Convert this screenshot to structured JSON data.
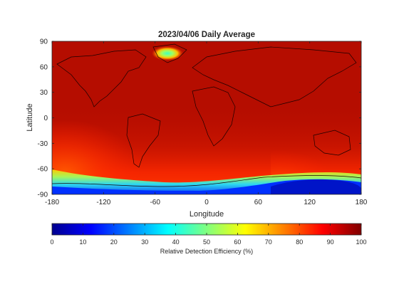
{
  "figure": {
    "title": "2023/04/06 Daily Average",
    "xlabel": "Longitude",
    "ylabel": "Latitude",
    "x_ticks": [
      "-180",
      "-120",
      "-60",
      "0",
      "60",
      "120",
      "180"
    ],
    "y_ticks": [
      "90",
      "60",
      "30",
      "0",
      "-30",
      "-60",
      "-90"
    ],
    "colorbar": {
      "label": "Relative Detection Efficiency (%)",
      "ticks": [
        "0",
        "10",
        "20",
        "30",
        "40",
        "50",
        "60",
        "70",
        "80",
        "90",
        "100"
      ],
      "colormap": "jet",
      "range": [
        0,
        100
      ]
    }
  },
  "map_data": {
    "projection": "equirectangular",
    "lon_range": [
      -180,
      180
    ],
    "lat_range": [
      -90,
      90
    ],
    "background_efficiency_pct": 97,
    "features": [
      {
        "name": "greenland-high-latitude-minimum",
        "lon": -45,
        "lat": 73,
        "min_efficiency_pct": 40
      },
      {
        "name": "antarctic-low-efficiency-band",
        "lat_range": [
          -90,
          -60
        ],
        "min_efficiency_pct": 5
      },
      {
        "name": "south-pacific-enhanced-gradient",
        "lon_range": [
          -180,
          -100
        ],
        "lat_range": [
          -90,
          -15
        ],
        "efficiency_pct_range": [
          60,
          90
        ]
      }
    ]
  }
}
